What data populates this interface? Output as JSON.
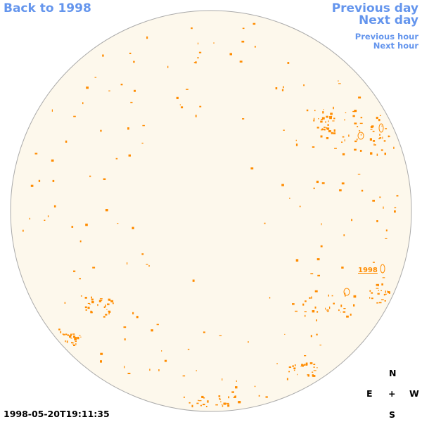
{
  "nav": {
    "back": "Back to 1998",
    "previous_day": "Previous day",
    "next_day": "Next day",
    "previous_hour": "Previous hour",
    "next_hour": "Next hour"
  },
  "timestamp": "1998-05-20T19:11:35",
  "compass": {
    "north": "N",
    "east": "E",
    "center": "+",
    "west": "W",
    "south": "S"
  },
  "region_label": "1998",
  "colors": {
    "disk_fill": "#fdf8ec",
    "disk_stroke": "#aaaaaa",
    "contour": "#ff8c00",
    "link": "#6495ED"
  }
}
